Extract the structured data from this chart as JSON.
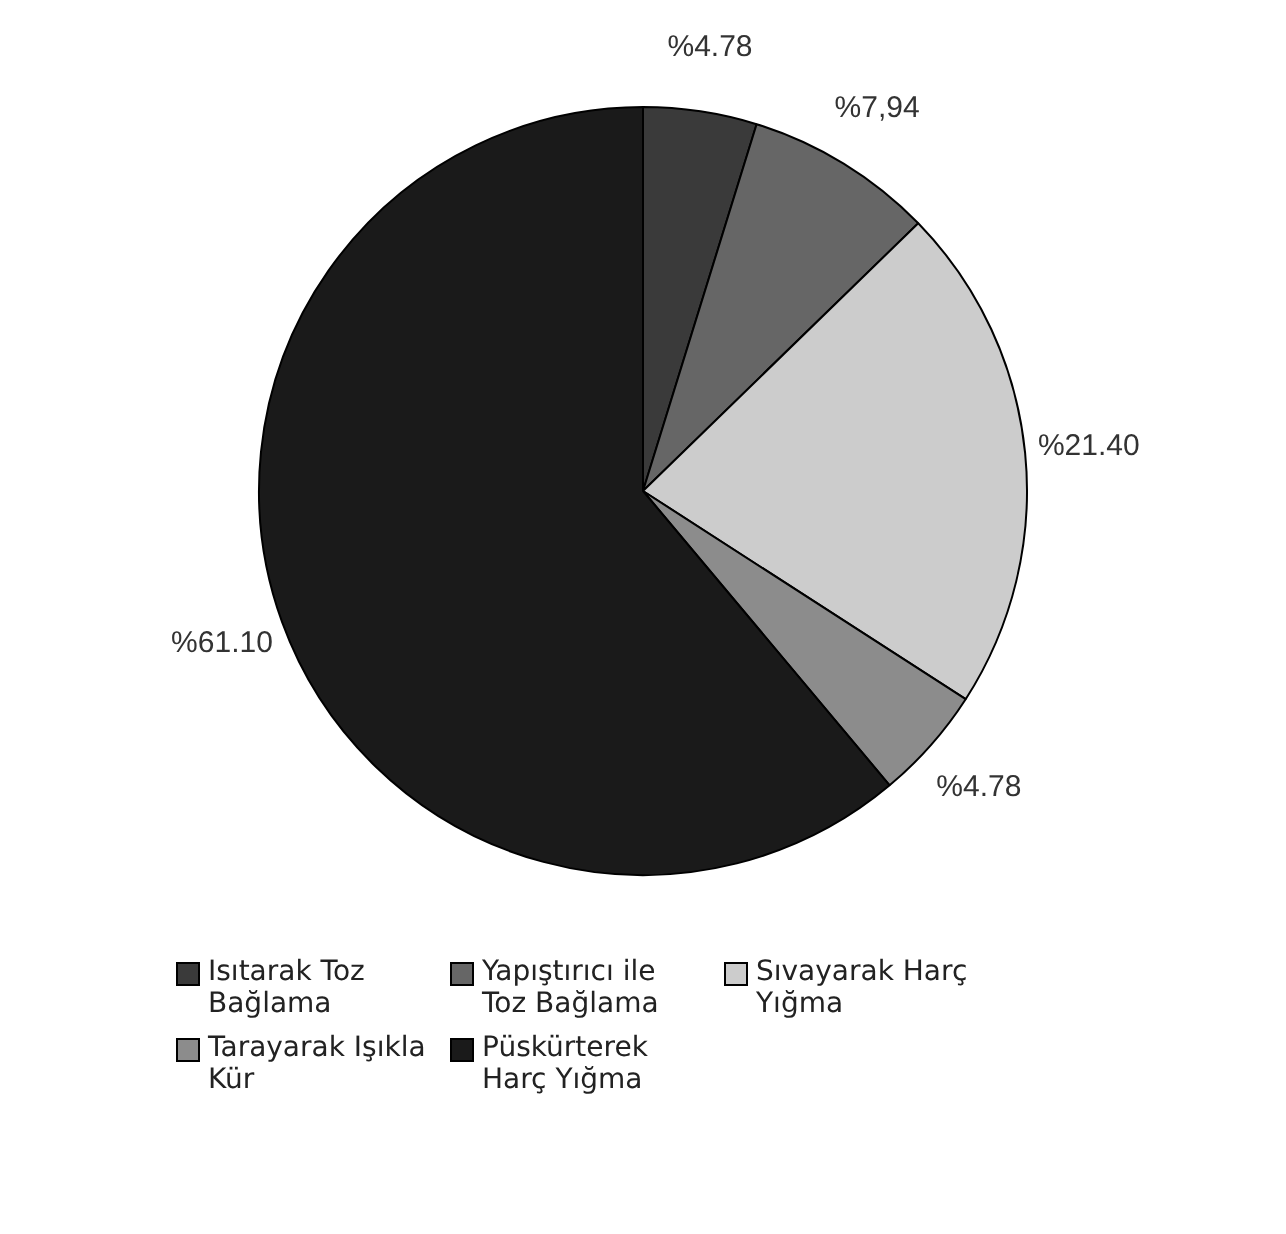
{
  "chart_data": {
    "type": "pie",
    "categories": [
      "Isıtarak Toz Bağlama",
      "Yapıştırıcı ile Toz Bağlama",
      "Sıvayarak Harç Yığma",
      "Tarayarak Işıkla Kür",
      "Püskürterek Harç Yığma"
    ],
    "values": [
      4.78,
      7.94,
      21.4,
      4.78,
      61.1
    ],
    "value_labels": [
      "%4.78",
      "%7,94",
      "%21.40",
      "%4.78",
      "%61.10"
    ],
    "colors": [
      "#3a3a3a",
      "#666666",
      "#cccccc",
      "#8c8c8c",
      "#1a1a1a"
    ],
    "legend": "bottom"
  }
}
